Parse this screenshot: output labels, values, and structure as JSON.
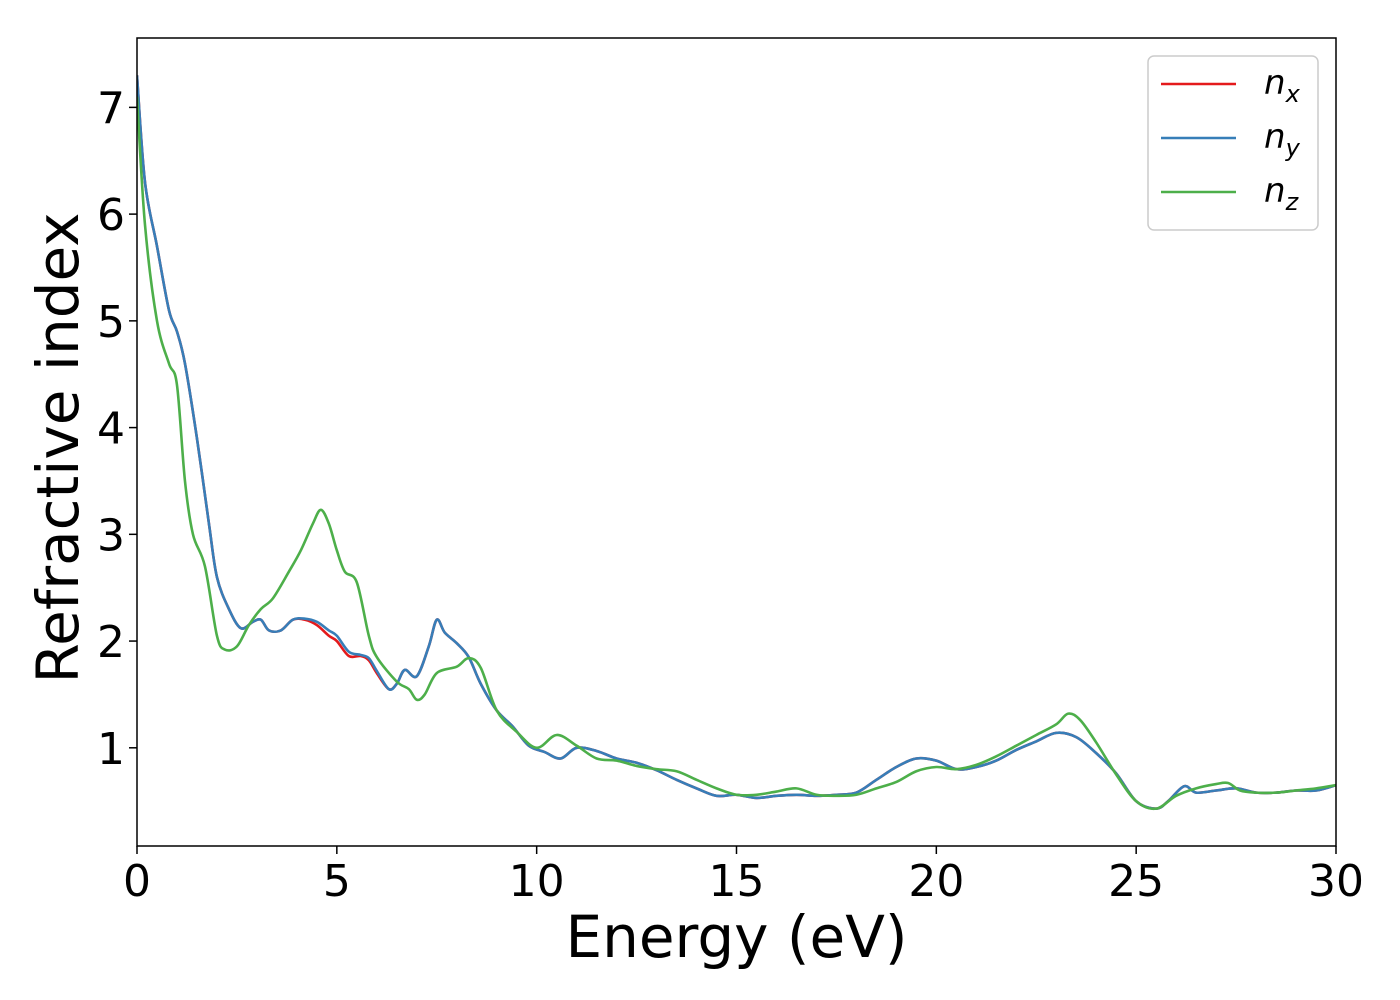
{
  "chart_data": {
    "type": "line",
    "title": "",
    "xlabel": "Energy (eV)",
    "ylabel": "Refractive index",
    "xlim": [
      0,
      30
    ],
    "ylim": [
      0.08,
      7.65
    ],
    "xticks": [
      0,
      5,
      10,
      15,
      20,
      25,
      30
    ],
    "xtick_labels": [
      "0",
      "5",
      "10",
      "15",
      "20",
      "25",
      "30"
    ],
    "yticks": [
      1,
      2,
      3,
      4,
      5,
      6,
      7
    ],
    "ytick_labels": [
      "1",
      "2",
      "3",
      "4",
      "5",
      "6",
      "7"
    ],
    "grid": false,
    "legend": {
      "position": "top-right"
    },
    "series": [
      {
        "name": "n_x",
        "label_base": "n",
        "label_sub": "x",
        "color": "#e41a1c",
        "x": [
          0,
          0.2,
          0.5,
          0.8,
          1.0,
          1.2,
          1.5,
          1.8,
          2.0,
          2.3,
          2.6,
          2.9,
          3.1,
          3.3,
          3.6,
          3.9,
          4.2,
          4.5,
          4.8,
          5.0,
          5.3,
          5.6,
          5.8,
          6.0,
          6.3,
          6.5,
          6.7,
          7.0,
          7.3,
          7.5,
          7.7,
          8.0,
          8.3,
          8.6,
          9.0,
          9.4,
          9.8,
          10.2,
          10.6,
          11.0,
          11.5,
          12.0,
          12.5,
          13.0,
          13.5,
          14.0,
          14.5,
          15.0,
          15.5,
          16.0,
          16.5,
          17.0,
          17.5,
          18.0,
          18.5,
          19.0,
          19.5,
          20.0,
          20.5,
          21.0,
          21.5,
          22.0,
          22.5,
          23.0,
          23.5,
          24.0,
          24.5,
          25.0,
          25.5,
          25.8,
          26.2,
          26.5,
          27.0,
          27.5,
          28.0,
          28.5,
          29.0,
          29.5,
          30.0
        ],
        "y": [
          7.3,
          6.3,
          5.7,
          5.1,
          4.9,
          4.6,
          3.9,
          3.1,
          2.6,
          2.3,
          2.12,
          2.18,
          2.2,
          2.1,
          2.1,
          2.2,
          2.2,
          2.15,
          2.05,
          2.0,
          1.86,
          1.86,
          1.82,
          1.7,
          1.55,
          1.6,
          1.73,
          1.67,
          1.95,
          2.2,
          2.08,
          1.98,
          1.85,
          1.6,
          1.35,
          1.2,
          1.02,
          0.96,
          0.9,
          1.0,
          0.97,
          0.9,
          0.86,
          0.79,
          0.7,
          0.62,
          0.55,
          0.56,
          0.53,
          0.55,
          0.56,
          0.55,
          0.56,
          0.58,
          0.7,
          0.82,
          0.9,
          0.88,
          0.8,
          0.82,
          0.88,
          0.98,
          1.06,
          1.14,
          1.1,
          0.95,
          0.76,
          0.5,
          0.43,
          0.5,
          0.64,
          0.58,
          0.6,
          0.62,
          0.58,
          0.58,
          0.6,
          0.6,
          0.65
        ]
      },
      {
        "name": "n_y",
        "label_base": "n",
        "label_sub": "y",
        "color": "#377eb8",
        "x": [
          0,
          0.2,
          0.5,
          0.8,
          1.0,
          1.2,
          1.5,
          1.8,
          2.0,
          2.3,
          2.6,
          2.9,
          3.1,
          3.3,
          3.6,
          3.9,
          4.2,
          4.5,
          4.8,
          5.0,
          5.3,
          5.6,
          5.8,
          6.0,
          6.3,
          6.5,
          6.7,
          7.0,
          7.3,
          7.5,
          7.7,
          8.0,
          8.3,
          8.6,
          9.0,
          9.4,
          9.8,
          10.2,
          10.6,
          11.0,
          11.5,
          12.0,
          12.5,
          13.0,
          13.5,
          14.0,
          14.5,
          15.0,
          15.5,
          16.0,
          16.5,
          17.0,
          17.5,
          18.0,
          18.5,
          19.0,
          19.5,
          20.0,
          20.5,
          21.0,
          21.5,
          22.0,
          22.5,
          23.0,
          23.5,
          24.0,
          24.5,
          25.0,
          25.5,
          25.8,
          26.2,
          26.5,
          27.0,
          27.5,
          28.0,
          28.5,
          29.0,
          29.5,
          30.0
        ],
        "y": [
          7.3,
          6.3,
          5.7,
          5.1,
          4.9,
          4.6,
          3.9,
          3.1,
          2.6,
          2.3,
          2.12,
          2.18,
          2.2,
          2.1,
          2.1,
          2.2,
          2.21,
          2.18,
          2.1,
          2.05,
          1.9,
          1.87,
          1.84,
          1.72,
          1.55,
          1.6,
          1.73,
          1.67,
          1.95,
          2.2,
          2.08,
          1.98,
          1.85,
          1.6,
          1.35,
          1.2,
          1.02,
          0.96,
          0.9,
          1.0,
          0.97,
          0.9,
          0.86,
          0.79,
          0.7,
          0.62,
          0.55,
          0.56,
          0.53,
          0.55,
          0.56,
          0.55,
          0.56,
          0.58,
          0.7,
          0.82,
          0.9,
          0.88,
          0.8,
          0.82,
          0.88,
          0.98,
          1.06,
          1.14,
          1.1,
          0.95,
          0.76,
          0.5,
          0.43,
          0.5,
          0.64,
          0.58,
          0.6,
          0.62,
          0.58,
          0.58,
          0.6,
          0.6,
          0.65
        ]
      },
      {
        "name": "n_z",
        "label_base": "n",
        "label_sub": "z",
        "color": "#4daf4a",
        "x": [
          0,
          0.2,
          0.5,
          0.8,
          1.0,
          1.2,
          1.4,
          1.7,
          2.0,
          2.2,
          2.5,
          2.8,
          3.1,
          3.4,
          3.8,
          4.1,
          4.4,
          4.6,
          4.8,
          5.0,
          5.2,
          5.5,
          5.8,
          6.0,
          6.5,
          6.8,
          7.0,
          7.2,
          7.5,
          8.0,
          8.3,
          8.6,
          9.0,
          9.5,
          10.0,
          10.5,
          11.0,
          11.5,
          12.0,
          12.5,
          13.0,
          13.5,
          14.0,
          14.5,
          15.0,
          15.5,
          16.0,
          16.5,
          17.0,
          17.5,
          18.0,
          18.5,
          19.0,
          19.5,
          20.0,
          20.5,
          21.0,
          21.5,
          22.0,
          22.5,
          23.0,
          23.3,
          23.6,
          24.0,
          24.5,
          25.0,
          25.5,
          26.0,
          26.5,
          27.0,
          27.3,
          27.6,
          28.0,
          28.5,
          29.0,
          29.5,
          30.0
        ],
        "y": [
          7.1,
          5.9,
          5.0,
          4.6,
          4.4,
          3.5,
          3.0,
          2.7,
          2.05,
          1.92,
          1.95,
          2.15,
          2.3,
          2.4,
          2.65,
          2.85,
          3.1,
          3.23,
          3.1,
          2.85,
          2.65,
          2.55,
          2.05,
          1.85,
          1.62,
          1.55,
          1.45,
          1.5,
          1.7,
          1.76,
          1.84,
          1.75,
          1.35,
          1.15,
          1.0,
          1.12,
          1.02,
          0.9,
          0.88,
          0.83,
          0.8,
          0.78,
          0.7,
          0.62,
          0.56,
          0.56,
          0.59,
          0.62,
          0.56,
          0.55,
          0.56,
          0.62,
          0.68,
          0.78,
          0.82,
          0.8,
          0.84,
          0.92,
          1.02,
          1.12,
          1.22,
          1.32,
          1.26,
          1.05,
          0.75,
          0.5,
          0.43,
          0.55,
          0.62,
          0.66,
          0.67,
          0.6,
          0.58,
          0.58,
          0.6,
          0.62,
          0.65
        ]
      }
    ]
  }
}
